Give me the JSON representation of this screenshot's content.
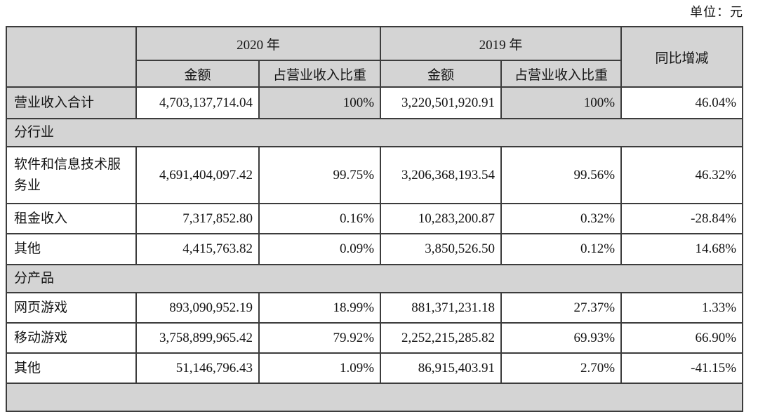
{
  "meta": {
    "unit_label": "单位：元"
  },
  "table": {
    "header": {
      "year_2020": "2020 年",
      "year_2019": "2019 年",
      "yoy": "同比增减",
      "amount_2020": "金额",
      "proportion_2020": "占营业收入比重",
      "amount_2019": "金额",
      "proportion_2019": "占营业收入比重"
    },
    "rows": [
      {
        "type": "data",
        "total": true,
        "label": "营业收入合计",
        "a2020": "4,703,137,714.04",
        "p2020": "100%",
        "a2019": "3,220,501,920.91",
        "p2019": "100%",
        "yoy": "46.04%"
      },
      {
        "type": "section",
        "label": "分行业"
      },
      {
        "type": "data",
        "label": "软件和信息技术服务业",
        "a2020": "4,691,404,097.42",
        "p2020": "99.75%",
        "a2019": "3,206,368,193.54",
        "p2019": "99.56%",
        "yoy": "46.32%"
      },
      {
        "type": "data",
        "label": "租金收入",
        "a2020": "7,317,852.80",
        "p2020": "0.16%",
        "a2019": "10,283,200.87",
        "p2019": "0.32%",
        "yoy": "-28.84%"
      },
      {
        "type": "data",
        "label": "其他",
        "a2020": "4,415,763.82",
        "p2020": "0.09%",
        "a2019": "3,850,526.50",
        "p2019": "0.12%",
        "yoy": "14.68%"
      },
      {
        "type": "section",
        "label": "分产品"
      },
      {
        "type": "data",
        "label": "网页游戏",
        "a2020": "893,090,952.19",
        "p2020": "18.99%",
        "a2019": "881,371,231.18",
        "p2019": "27.37%",
        "yoy": "1.33%"
      },
      {
        "type": "data",
        "label": "移动游戏",
        "a2020": "3,758,899,965.42",
        "p2020": "79.92%",
        "a2019": "2,252,215,285.82",
        "p2019": "69.93%",
        "yoy": "66.90%"
      },
      {
        "type": "data",
        "label": "其他",
        "a2020": "51,146,796.43",
        "p2020": "1.09%",
        "a2019": "86,915,403.91",
        "p2019": "2.70%",
        "yoy": "-41.15%"
      },
      {
        "type": "section",
        "label": ""
      }
    ]
  }
}
